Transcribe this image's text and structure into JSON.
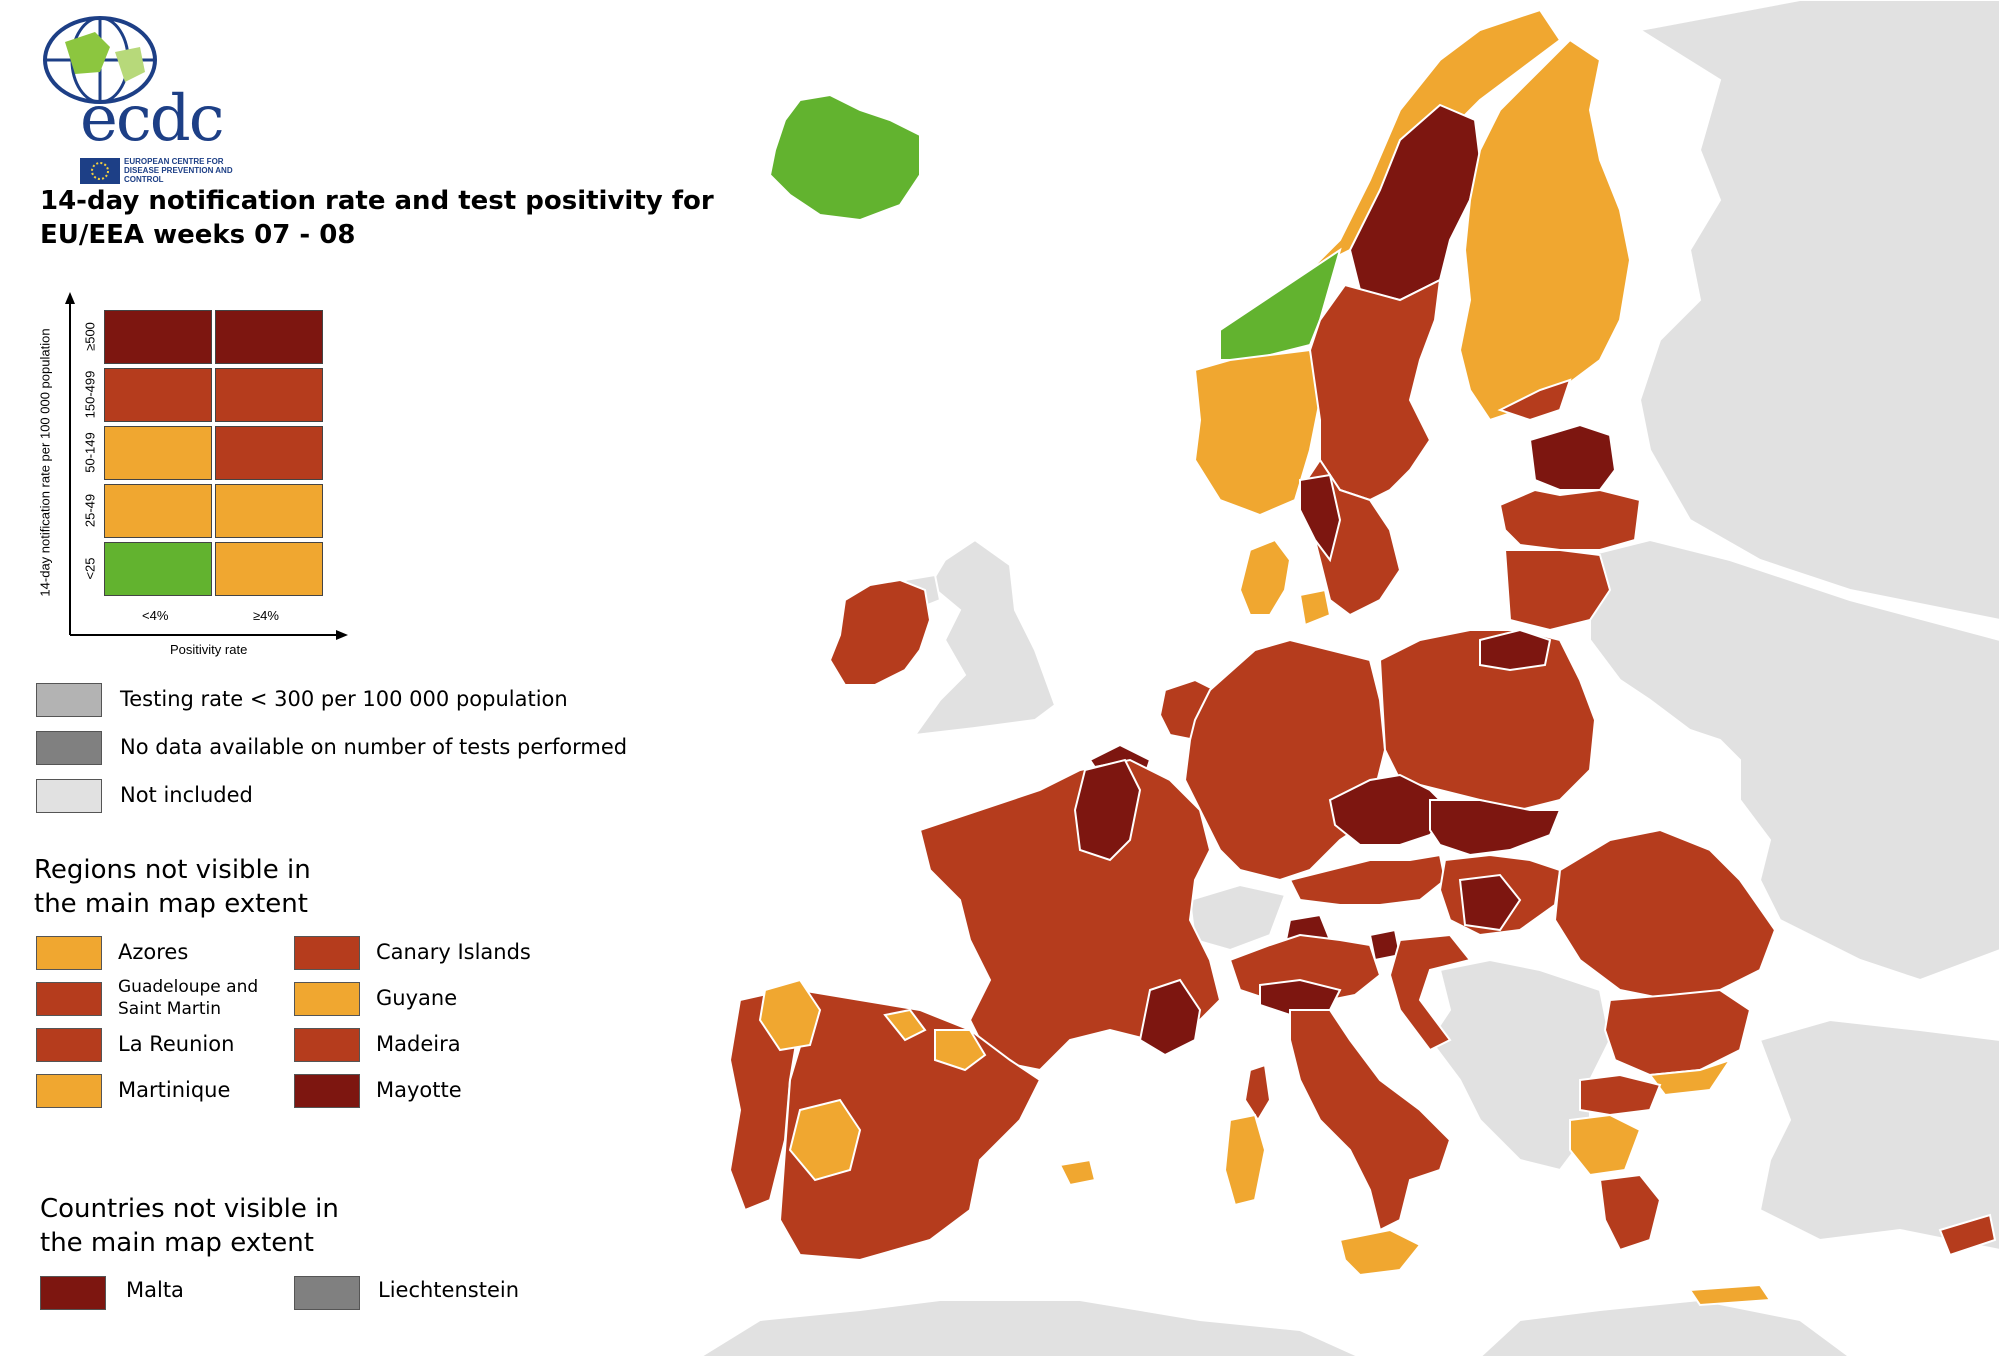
{
  "logo": {
    "word": "ecdc",
    "agency": "EUROPEAN CENTRE FOR DISEASE PREVENTION AND CONTROL"
  },
  "title": "14-day notification rate and test positivity for EU/EEA weeks 07 - 08",
  "colors": {
    "dark_red": "#7d1610",
    "red": "#b53c1d",
    "orange": "#f0a730",
    "green": "#62b32f",
    "grey_low_testing": "#b3b3b3",
    "grey_no_data": "#808080",
    "not_included": "#e1e1e1",
    "border": "#6b2a12"
  },
  "matrix": {
    "y_axis_title": "14-day notification rate per 100 000 population",
    "x_axis_title": "Positivity rate",
    "rows": [
      "≥500",
      "150-499",
      "50-149",
      "25-49",
      "<25"
    ],
    "cols": [
      "<4%",
      "≥4%"
    ],
    "cells": [
      [
        "dark_red",
        "dark_red"
      ],
      [
        "red",
        "red"
      ],
      [
        "orange",
        "red"
      ],
      [
        "orange",
        "orange"
      ],
      [
        "green",
        "orange"
      ]
    ]
  },
  "special": [
    {
      "label": "Testing rate < 300 per 100 000 population",
      "color": "grey_low_testing"
    },
    {
      "label": "No data available on number of tests performed",
      "color": "grey_no_data"
    },
    {
      "label": "Not included",
      "color": "not_included"
    }
  ],
  "regions_heading": "Regions not visible in the main map extent",
  "regions": [
    {
      "label": "Azores",
      "color": "orange"
    },
    {
      "label": "Canary Islands",
      "color": "red"
    },
    {
      "label": "Guadeloupe and Saint Martin",
      "color": "red"
    },
    {
      "label": "Guyane",
      "color": "orange"
    },
    {
      "label": "La Reunion",
      "color": "red"
    },
    {
      "label": "Madeira",
      "color": "red"
    },
    {
      "label": "Martinique",
      "color": "orange"
    },
    {
      "label": "Mayotte",
      "color": "dark_red"
    }
  ],
  "countries_heading": "Countries not visible in the main map extent",
  "countries": [
    {
      "label": "Malta",
      "color": "dark_red"
    },
    {
      "label": "Liechtenstein",
      "color": "grey_no_data"
    }
  ]
}
